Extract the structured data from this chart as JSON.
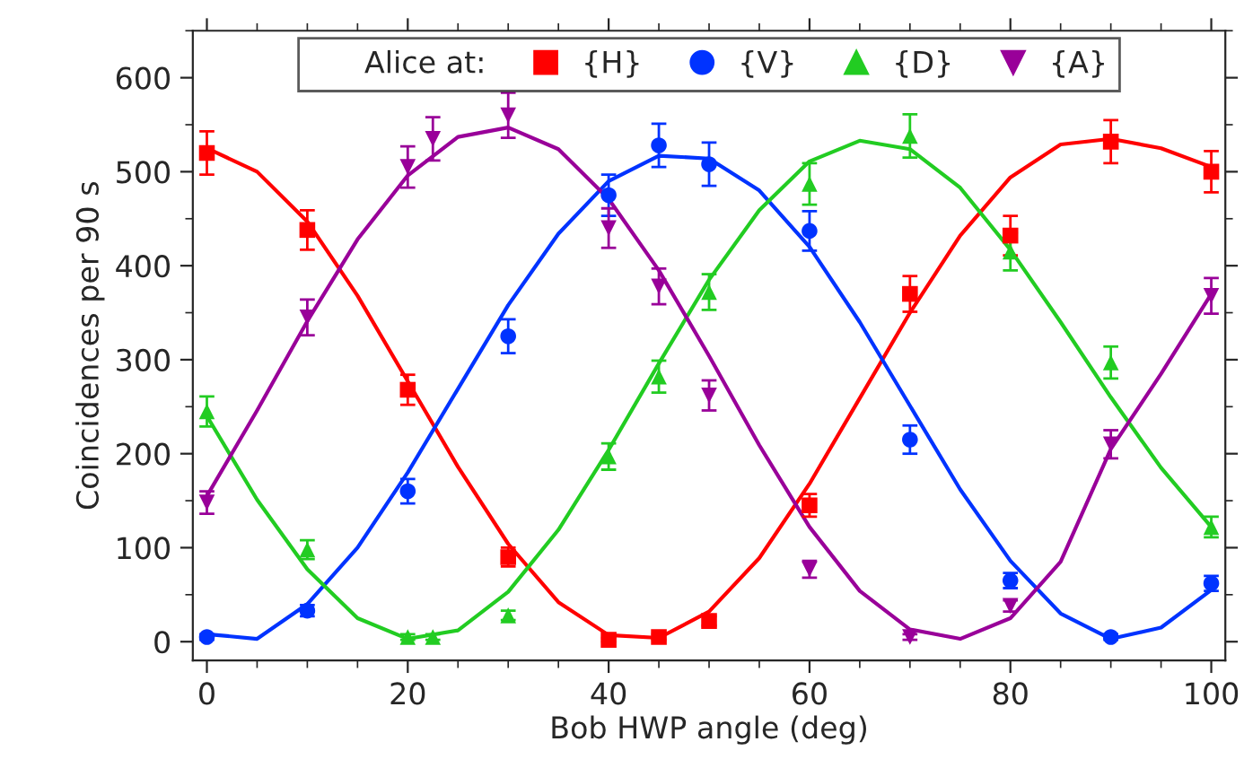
{
  "chart_data": {
    "type": "scatter",
    "xlabel": "Bob HWP angle (deg)",
    "ylabel": "Coincidences per 90 s",
    "legend_title": "Alice at:",
    "legend": "top",
    "xlim": [
      -1.4,
      101.4
    ],
    "ylim": [
      -20,
      650
    ],
    "xticks": [
      0,
      20,
      40,
      60,
      80,
      100
    ],
    "yticks": [
      0,
      100,
      200,
      300,
      400,
      500,
      600
    ],
    "grid": false,
    "series": [
      {
        "name": "{H}",
        "marker": "square",
        "color": "#ff0000",
        "x": [
          0,
          10,
          20,
          30,
          40,
          45,
          50,
          60,
          70,
          80,
          90,
          100
        ],
        "values": [
          520,
          438,
          268,
          90,
          2,
          5,
          22,
          145,
          370,
          432,
          532,
          500
        ],
        "errors": [
          23,
          21,
          16,
          10,
          2,
          3,
          5,
          12,
          19,
          21,
          23,
          22
        ]
      },
      {
        "name": "{V}",
        "marker": "circle",
        "color": "#0033ff",
        "x": [
          0,
          10,
          20,
          30,
          40,
          45,
          50,
          60,
          70,
          80,
          90,
          100
        ],
        "values": [
          5,
          33,
          160,
          325,
          475,
          528,
          508,
          437,
          215,
          65,
          5,
          62
        ],
        "errors": [
          3,
          6,
          13,
          18,
          22,
          23,
          23,
          21,
          15,
          8,
          3,
          8
        ]
      },
      {
        "name": "{D}",
        "marker": "triangle",
        "color": "#22cc22",
        "x": [
          0,
          10,
          20,
          22.5,
          30,
          40,
          45,
          50,
          60,
          70,
          80,
          90,
          100
        ],
        "values": [
          245,
          98,
          5,
          5,
          28,
          197,
          282,
          372,
          487,
          538,
          415,
          297,
          122
        ],
        "errors": [
          16,
          10,
          3,
          3,
          5,
          14,
          17,
          19,
          22,
          23,
          20,
          17,
          11
        ]
      },
      {
        "name": "{A}",
        "marker": "triangle_down",
        "color": "#990099",
        "x": [
          0,
          10,
          20,
          22.5,
          30,
          40,
          45,
          50,
          60,
          70,
          80,
          90,
          100
        ],
        "values": [
          148,
          345,
          505,
          535,
          560,
          440,
          378,
          262,
          77,
          5,
          38,
          210,
          368
        ],
        "errors": [
          12,
          19,
          22,
          23,
          24,
          21,
          19,
          16,
          9,
          3,
          6,
          15,
          19
        ]
      },
      {
        "type": "line",
        "color": "#ff0000",
        "x": [
          0,
          5,
          10,
          15,
          20,
          25,
          30,
          35,
          40,
          45,
          50,
          55,
          60,
          65,
          70,
          75,
          80,
          85,
          90,
          95,
          100
        ],
        "values": [
          525,
          500,
          447,
          368,
          277,
          186,
          104,
          42,
          7,
          4,
          32,
          89,
          168,
          259,
          350,
          432,
          494,
          529,
          535,
          525,
          505
        ]
      },
      {
        "type": "line",
        "color": "#0033ff",
        "x": [
          0,
          5,
          10,
          15,
          20,
          25,
          30,
          35,
          40,
          45,
          50,
          55,
          60,
          65,
          70,
          75,
          80,
          85,
          90,
          95,
          100
        ],
        "values": [
          8,
          3,
          40,
          100,
          180,
          269,
          358,
          434,
          490,
          517,
          514,
          480,
          420,
          340,
          251,
          162,
          86,
          30,
          3,
          15,
          55
        ]
      },
      {
        "type": "line",
        "color": "#22cc22",
        "x": [
          0,
          5,
          10,
          15,
          20,
          25,
          30,
          35,
          40,
          45,
          50,
          55,
          60,
          65,
          70,
          75,
          80,
          85,
          90,
          95,
          100
        ],
        "values": [
          240,
          151,
          77,
          25,
          3,
          12,
          53,
          119,
          204,
          296,
          385,
          459,
          511,
          533,
          524,
          483,
          417,
          340,
          260,
          185,
          122
        ]
      },
      {
        "type": "line",
        "color": "#990099",
        "x": [
          0,
          5,
          10,
          15,
          20,
          25,
          30,
          35,
          40,
          45,
          50,
          55,
          60,
          65,
          70,
          75,
          80,
          85,
          90,
          95,
          100
        ],
        "values": [
          155,
          246,
          341,
          428,
          496,
          537,
          547,
          524,
          471,
          395,
          304,
          209,
          122,
          54,
          13,
          3,
          25,
          85,
          205,
          285,
          370
        ]
      }
    ]
  }
}
